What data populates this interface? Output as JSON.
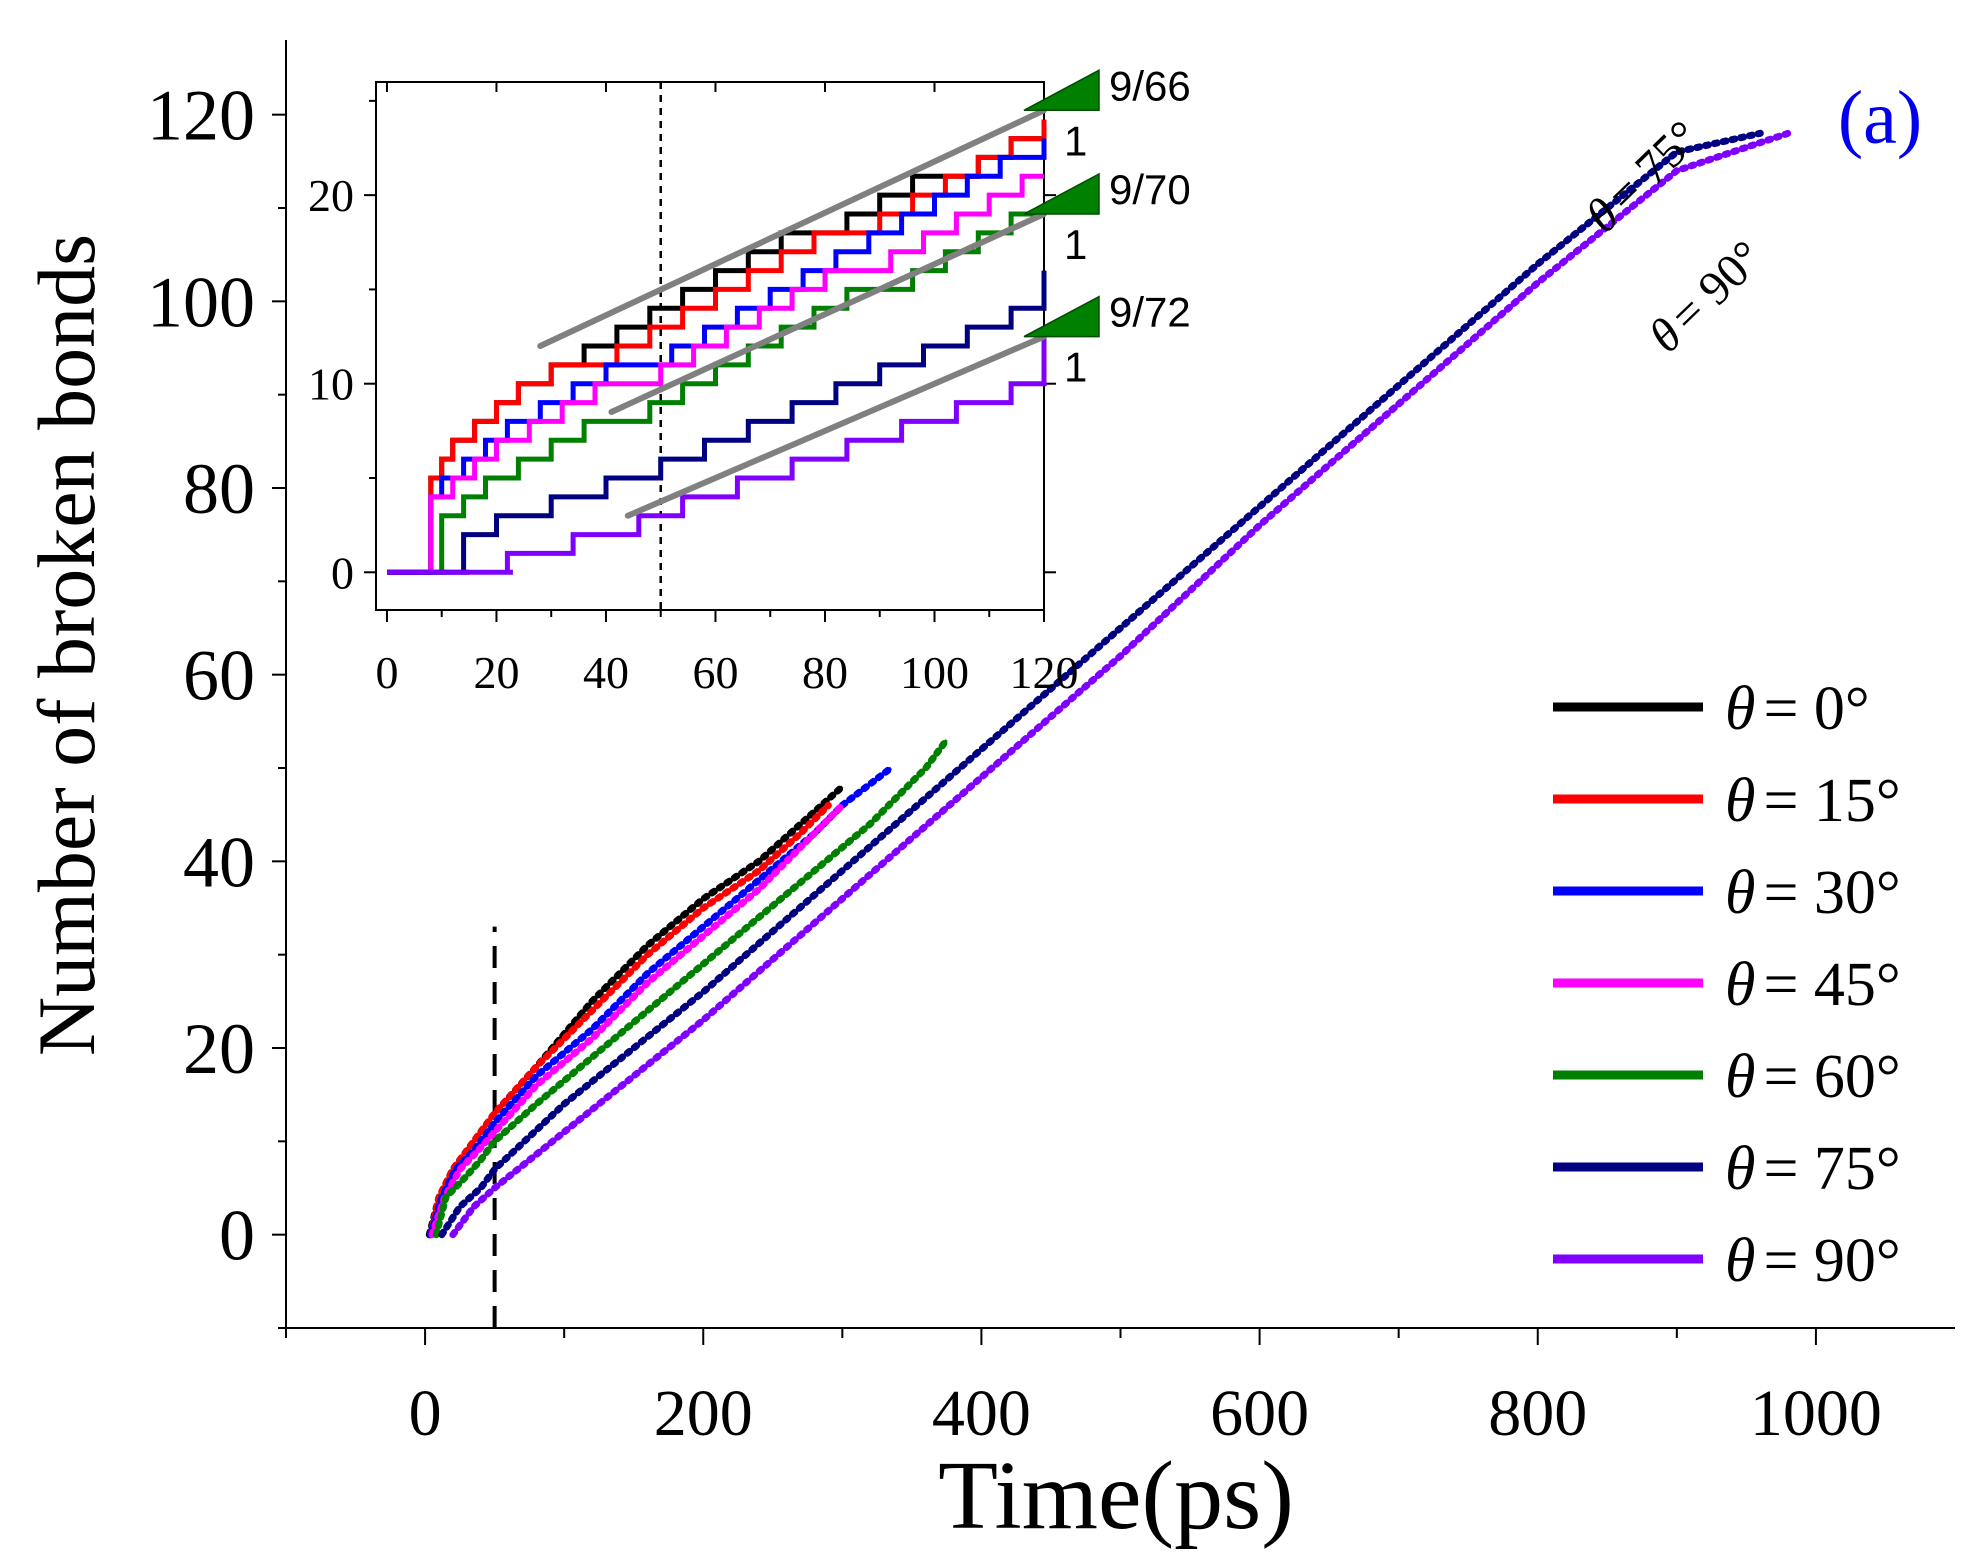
{
  "chart_data": [
    {
      "type": "line",
      "title": "",
      "panel_label": "(a)",
      "xlabel": "Time(ps)",
      "ylabel": "Number of broken bonds",
      "xlim": [
        -100,
        1100
      ],
      "ylim": [
        -10,
        128
      ],
      "xticks": [
        0,
        200,
        400,
        600,
        800,
        1000
      ],
      "yticks": [
        0,
        20,
        40,
        60,
        80,
        100,
        120
      ],
      "xtick_labels": [
        "0",
        "200",
        "400",
        "600",
        "800",
        "1000"
      ],
      "ytick_labels": [
        "0",
        "20",
        "40",
        "60",
        "80",
        "100",
        "120"
      ],
      "theta_symbol": "θ",
      "dashed_line_x": 50,
      "dashed_line_y_range": [
        -10,
        33
      ],
      "series": [
        {
          "name": "θ = 0°",
          "legend_label": "= 0°",
          "color": "#000000",
          "x": [
            3,
            10,
            20,
            30,
            50,
            80,
            120,
            160,
            200,
            240,
            270,
            300
          ],
          "values": [
            0,
            4,
            7,
            9,
            13,
            18,
            25,
            31,
            36,
            40,
            44,
            48
          ]
        },
        {
          "name": "θ = 15°",
          "legend_label": "= 15°",
          "color": "#ff0000",
          "x": [
            4,
            10,
            20,
            30,
            50,
            80,
            120,
            160,
            200,
            240,
            270,
            290
          ],
          "values": [
            0,
            4,
            7,
            9,
            13,
            18,
            24,
            30,
            35,
            39,
            43,
            46
          ]
        },
        {
          "name": "θ = 30°",
          "legend_label": "= 30°",
          "color": "#0000ff",
          "x": [
            4,
            12,
            22,
            35,
            50,
            80,
            120,
            160,
            200,
            240,
            280,
            300,
            335
          ],
          "values": [
            0,
            4,
            7,
            9,
            12,
            17,
            22,
            28,
            33,
            38,
            43,
            46,
            50
          ]
        },
        {
          "name": "θ = 45°",
          "legend_label": "= 45°",
          "color": "#ff00ff",
          "x": [
            5,
            14,
            25,
            38,
            50,
            80,
            120,
            160,
            200,
            240,
            280,
            300
          ],
          "values": [
            0,
            4,
            7,
            9,
            11,
            16,
            21,
            27,
            32,
            37,
            43,
            46
          ]
        },
        {
          "name": "θ = 60°",
          "legend_label": "= 60°",
          "color": "#008000",
          "x": [
            8,
            15,
            28,
            40,
            50,
            80,
            120,
            160,
            200,
            240,
            280,
            320,
            360,
            375
          ],
          "values": [
            0,
            4,
            6,
            8,
            10,
            14,
            19,
            24,
            29,
            34,
            39,
            44,
            50,
            53
          ]
        },
        {
          "name": "θ = 75°",
          "legend_label": "= 75°",
          "color": "#000080",
          "x": [
            12,
            25,
            40,
            50,
            100,
            200,
            300,
            400,
            500,
            600,
            700,
            800,
            900,
            960
          ],
          "values": [
            0,
            3,
            5,
            7,
            14,
            26,
            39,
            52,
            65,
            78,
            91,
            104,
            116,
            118
          ]
        },
        {
          "name": "θ = 90°",
          "legend_label": "= 90°",
          "color": "#8000ff",
          "x": [
            20,
            35,
            50,
            100,
            200,
            300,
            400,
            500,
            600,
            700,
            800,
            900,
            980
          ],
          "values": [
            0,
            3,
            5,
            11,
            23,
            36,
            49,
            62,
            76,
            89,
            102,
            114,
            118
          ]
        }
      ],
      "annotations": [
        {
          "text": "= 75°",
          "x": 895,
          "y": 110
        },
        {
          "text": "= 90°",
          "x": 915,
          "y": 100
        }
      ]
    },
    {
      "type": "line",
      "title": "",
      "inset": true,
      "xlim": [
        -2,
        120
      ],
      "ylim": [
        -2,
        26
      ],
      "xticks": [
        0,
        20,
        40,
        60,
        80,
        100,
        120
      ],
      "yticks": [
        0,
        10,
        20
      ],
      "xtick_labels": [
        "0",
        "20",
        "40",
        "60",
        "80",
        "100",
        "120"
      ],
      "ytick_labels": [
        "0",
        "10",
        "20"
      ],
      "dashed_line_x": 50,
      "series": [
        {
          "name": "θ = 0°",
          "color": "#000000",
          "x": [
            0,
            3,
            8,
            10,
            12,
            16,
            20,
            24,
            30,
            36,
            42,
            48,
            54,
            60,
            66,
            72,
            78,
            84,
            90,
            96,
            102,
            108,
            114,
            120
          ],
          "values": [
            0,
            0,
            5,
            6,
            7,
            8,
            9,
            10,
            11,
            12,
            13,
            14,
            15,
            16,
            17,
            18,
            18,
            19,
            20,
            21,
            21,
            22,
            23,
            24
          ]
        },
        {
          "name": "θ = 15°",
          "color": "#ff0000",
          "x": [
            0,
            4,
            8,
            10,
            12,
            16,
            20,
            24,
            30,
            36,
            42,
            48,
            54,
            60,
            66,
            72,
            78,
            84,
            90,
            96,
            102,
            108,
            114,
            120
          ],
          "values": [
            0,
            0,
            5,
            6,
            7,
            8,
            9,
            10,
            11,
            11,
            12,
            13,
            14,
            15,
            16,
            17,
            18,
            18,
            19,
            20,
            21,
            22,
            23,
            24
          ]
        },
        {
          "name": "θ = 30°",
          "color": "#0000ff",
          "x": [
            0,
            4,
            8,
            10,
            14,
            18,
            22,
            28,
            34,
            40,
            46,
            52,
            58,
            64,
            70,
            76,
            82,
            88,
            94,
            100,
            106,
            112,
            120
          ],
          "values": [
            0,
            0,
            4,
            5,
            6,
            7,
            8,
            9,
            10,
            11,
            11,
            12,
            13,
            14,
            15,
            16,
            17,
            18,
            19,
            20,
            21,
            22,
            23
          ]
        },
        {
          "name": "θ = 45°",
          "color": "#ff00ff",
          "x": [
            0,
            5,
            8,
            12,
            16,
            20,
            26,
            32,
            38,
            44,
            50,
            56,
            62,
            68,
            74,
            80,
            86,
            92,
            98,
            104,
            110,
            116,
            120
          ],
          "values": [
            0,
            0,
            4,
            5,
            6,
            7,
            8,
            9,
            10,
            10,
            11,
            12,
            13,
            14,
            15,
            16,
            16,
            17,
            18,
            19,
            20,
            21,
            21
          ]
        },
        {
          "name": "θ = 60°",
          "color": "#008000",
          "x": [
            0,
            8,
            10,
            14,
            18,
            24,
            30,
            36,
            42,
            48,
            54,
            60,
            66,
            72,
            78,
            84,
            90,
            96,
            102,
            108,
            114,
            120
          ],
          "values": [
            0,
            0,
            3,
            4,
            5,
            6,
            7,
            8,
            8,
            9,
            10,
            11,
            12,
            13,
            14,
            15,
            15,
            16,
            17,
            18,
            19,
            19
          ]
        },
        {
          "name": "θ = 75°",
          "color": "#000080",
          "x": [
            0,
            12,
            14,
            20,
            30,
            40,
            50,
            58,
            66,
            74,
            82,
            90,
            98,
            106,
            114,
            120
          ],
          "values": [
            0,
            0,
            2,
            3,
            4,
            5,
            6,
            7,
            8,
            9,
            10,
            11,
            12,
            13,
            14,
            16
          ]
        },
        {
          "name": "θ = 90°",
          "color": "#8000ff",
          "x": [
            0,
            20,
            22,
            34,
            46,
            54,
            64,
            74,
            84,
            94,
            104,
            114,
            120
          ],
          "values": [
            0,
            0,
            1,
            2,
            3,
            4,
            5,
            6,
            7,
            8,
            9,
            10,
            13
          ]
        }
      ],
      "reference_lines": [
        {
          "x": [
            28,
            120
          ],
          "y": [
            12,
            24.5
          ]
        },
        {
          "x": [
            41,
            120
          ],
          "y": [
            8.5,
            19
          ]
        },
        {
          "x": [
            44,
            120
          ],
          "y": [
            3,
            12.5
          ]
        }
      ],
      "slope_labels": [
        {
          "slope": "9/66",
          "run": "1"
        },
        {
          "slope": "9/70",
          "run": "1"
        },
        {
          "slope": "9/72",
          "run": "1"
        }
      ]
    }
  ]
}
